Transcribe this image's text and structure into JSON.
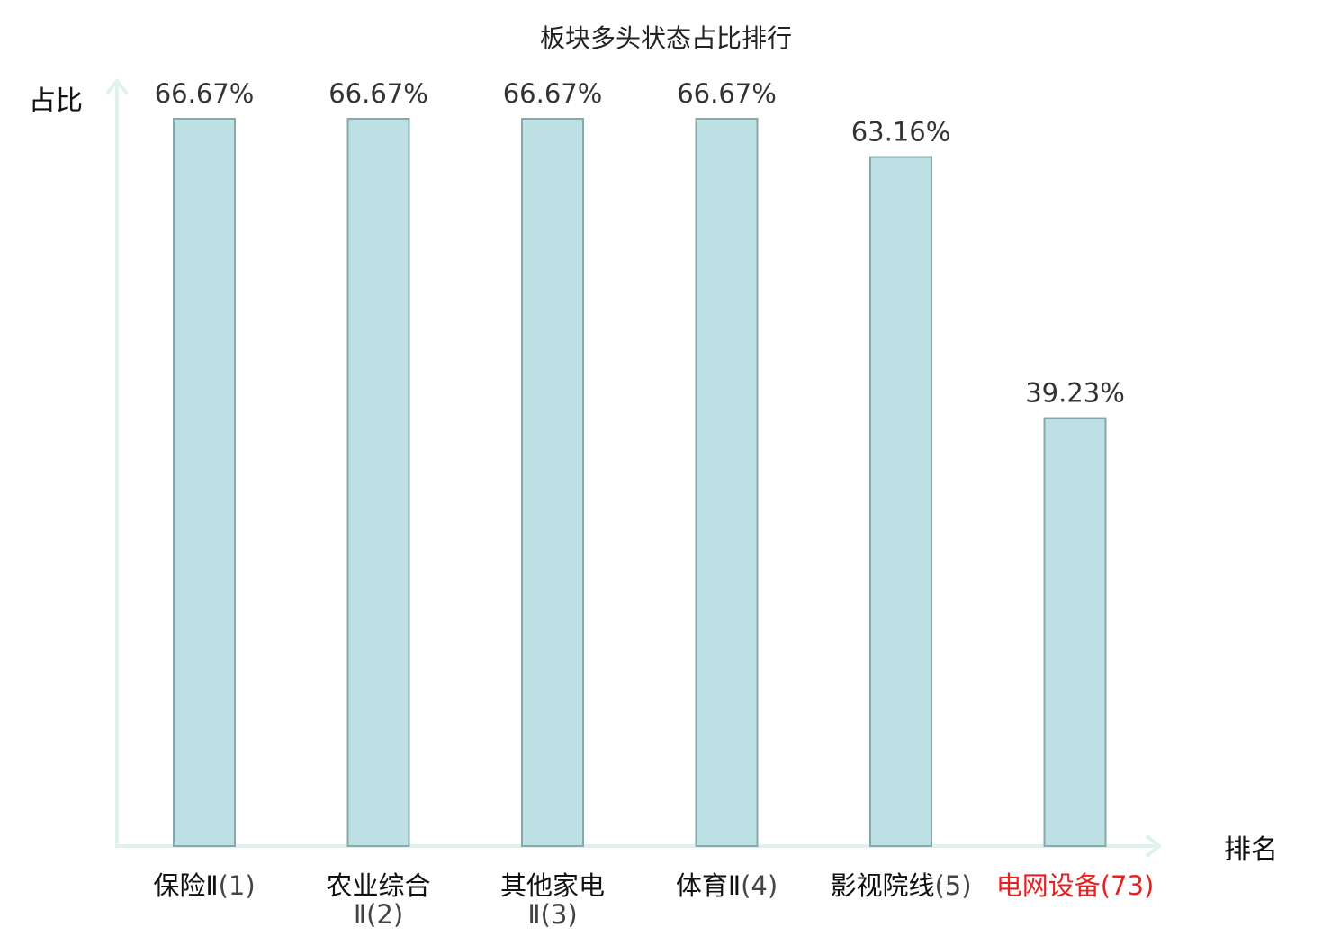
{
  "chart_data": {
    "type": "bar",
    "title": "板块多头状态占比排行",
    "ylabel": "占比",
    "xlabel": "排名",
    "categories": [
      {
        "name": "保险Ⅱ",
        "rank": "(1)",
        "highlight": false
      },
      {
        "name": "农业综合Ⅱ",
        "rank": "(2)",
        "highlight": false
      },
      {
        "name": "其他家电Ⅱ",
        "rank": "(3)",
        "highlight": false
      },
      {
        "name": "体育Ⅱ",
        "rank": "(4)",
        "highlight": false
      },
      {
        "name": "影视院线",
        "rank": "(5)",
        "highlight": false
      },
      {
        "name": "电网设备",
        "rank": "(73)",
        "highlight": true
      }
    ],
    "values": [
      66.67,
      66.67,
      66.67,
      66.67,
      63.16,
      39.23
    ],
    "value_labels": [
      "66.67%",
      "66.67%",
      "66.67%",
      "66.67%",
      "63.16%",
      "39.23%"
    ],
    "ylim": [
      0,
      70
    ],
    "grid": false,
    "colors": {
      "bar_fill": "#bce0e3",
      "bar_stroke": "#86a9ab",
      "axis": "#dff2ef",
      "highlight_text": "#e8201e",
      "label_text": "#111111",
      "rank_text": "#444444"
    }
  }
}
